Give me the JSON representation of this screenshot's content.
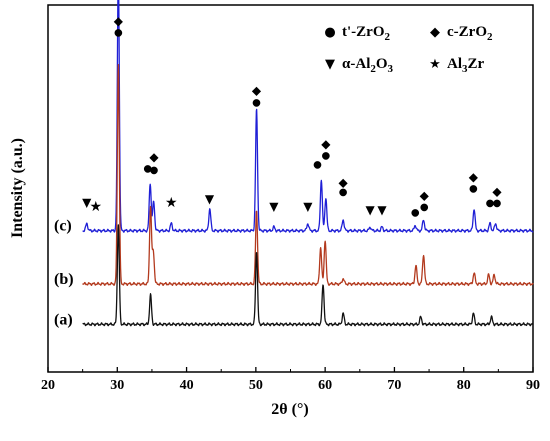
{
  "chart_data": {
    "type": "line",
    "xlabel": "2θ (°)",
    "ylabel": "Intensity (a.u.)",
    "xlim": [
      20,
      90
    ],
    "xticks": [
      "20",
      "30",
      "40",
      "50",
      "60",
      "70",
      "80",
      "90"
    ],
    "grid": false,
    "legend_placement": "top-right",
    "legend": [
      {
        "symbol": "●",
        "name": "t'-ZrO",
        "sub": "2"
      },
      {
        "symbol": "◆",
        "name": "c-ZrO",
        "sub": "2"
      },
      {
        "symbol": "▼",
        "name": "α-Al",
        "sub": "2",
        "tail": "O",
        "sub2": "3"
      },
      {
        "symbol": "★",
        "name": "Al",
        "sub": "3",
        "tail": "Zr"
      }
    ],
    "series": [
      {
        "name": "(c)",
        "color": "#1f1fd6",
        "baseline": 0.385,
        "peaks": [
          [
            25.6,
            0.02
          ],
          [
            30.15,
            0.71
          ],
          [
            34.75,
            0.13
          ],
          [
            35.25,
            0.08
          ],
          [
            37.8,
            0.02
          ],
          [
            43.35,
            0.06
          ],
          [
            50.1,
            0.33
          ],
          [
            52.6,
            0.01
          ],
          [
            57.5,
            0.02
          ],
          [
            59.45,
            0.14
          ],
          [
            60.1,
            0.09
          ],
          [
            62.6,
            0.03
          ],
          [
            66.5,
            0.01
          ],
          [
            68.2,
            0.01
          ],
          [
            73.0,
            0.015
          ],
          [
            74.2,
            0.03
          ],
          [
            81.5,
            0.06
          ],
          [
            83.8,
            0.02
          ],
          [
            84.6,
            0.02
          ]
        ]
      },
      {
        "name": "(b)",
        "color": "#b33a1e",
        "baseline": 0.24,
        "peaks": [
          [
            30.15,
            0.6
          ],
          [
            34.8,
            0.21
          ],
          [
            35.2,
            0.09
          ],
          [
            50.1,
            0.2
          ],
          [
            59.35,
            0.1
          ],
          [
            60.0,
            0.12
          ],
          [
            62.6,
            0.015
          ],
          [
            73.1,
            0.05
          ],
          [
            74.2,
            0.08
          ],
          [
            81.5,
            0.03
          ],
          [
            83.6,
            0.025
          ],
          [
            84.4,
            0.025
          ]
        ]
      },
      {
        "name": "(a)",
        "color": "#111111",
        "baseline": 0.13,
        "peaks": [
          [
            30.15,
            0.27
          ],
          [
            34.8,
            0.08
          ],
          [
            50.1,
            0.2
          ],
          [
            59.7,
            0.11
          ],
          [
            62.6,
            0.03
          ],
          [
            73.8,
            0.02
          ],
          [
            81.4,
            0.03
          ],
          [
            84.0,
            0.02
          ]
        ]
      }
    ],
    "markers": [
      {
        "x": 30.15,
        "y": 0.955,
        "symbol": "◆"
      },
      {
        "x": 30.15,
        "y": 0.925,
        "symbol": "●"
      },
      {
        "x": 25.6,
        "y": 0.46,
        "symbol": "▼"
      },
      {
        "x": 26.9,
        "y": 0.45,
        "symbol": "★"
      },
      {
        "x": 34.4,
        "y": 0.555,
        "symbol": "●"
      },
      {
        "x": 35.3,
        "y": 0.55,
        "symbol": "●"
      },
      {
        "x": 35.3,
        "y": 0.585,
        "symbol": "◆"
      },
      {
        "x": 37.8,
        "y": 0.46,
        "symbol": "★"
      },
      {
        "x": 43.3,
        "y": 0.47,
        "symbol": "▼"
      },
      {
        "x": 50.1,
        "y": 0.765,
        "symbol": "◆"
      },
      {
        "x": 50.1,
        "y": 0.735,
        "symbol": "●"
      },
      {
        "x": 52.6,
        "y": 0.45,
        "symbol": "▼"
      },
      {
        "x": 57.5,
        "y": 0.45,
        "symbol": "▼"
      },
      {
        "x": 58.9,
        "y": 0.565,
        "symbol": "●"
      },
      {
        "x": 60.1,
        "y": 0.59,
        "symbol": "●"
      },
      {
        "x": 60.1,
        "y": 0.62,
        "symbol": "◆"
      },
      {
        "x": 62.6,
        "y": 0.49,
        "symbol": "●"
      },
      {
        "x": 62.6,
        "y": 0.515,
        "symbol": "◆"
      },
      {
        "x": 66.5,
        "y": 0.44,
        "symbol": "▼"
      },
      {
        "x": 68.2,
        "y": 0.44,
        "symbol": "▼"
      },
      {
        "x": 73.0,
        "y": 0.435,
        "symbol": "●"
      },
      {
        "x": 74.3,
        "y": 0.45,
        "symbol": "●"
      },
      {
        "x": 74.3,
        "y": 0.48,
        "symbol": "◆"
      },
      {
        "x": 81.4,
        "y": 0.5,
        "symbol": "●"
      },
      {
        "x": 81.4,
        "y": 0.53,
        "symbol": "◆"
      },
      {
        "x": 83.8,
        "y": 0.46,
        "symbol": "●"
      },
      {
        "x": 84.8,
        "y": 0.46,
        "symbol": "●"
      },
      {
        "x": 84.8,
        "y": 0.49,
        "symbol": "◆"
      }
    ]
  }
}
